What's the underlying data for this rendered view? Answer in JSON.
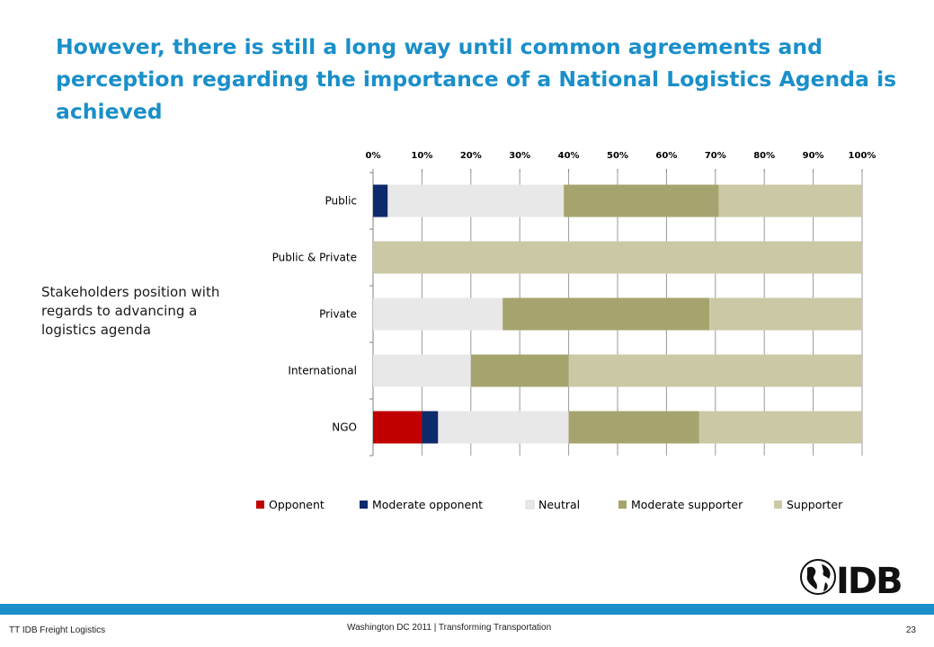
{
  "slide": {
    "title": "However, there is still a long way until common agreements and perception regarding the importance of a National Logistics Agenda is achieved",
    "side_note": "Stakeholders  position with regards to advancing a logistics agenda"
  },
  "footer": {
    "left": "TT IDB Freight Logistics",
    "center": "Washington DC 2011 | Transforming Transportation",
    "page": "23"
  },
  "logo": {
    "text": "IDB",
    "icon": "globe-icon"
  },
  "chart_data": {
    "type": "bar",
    "orientation": "horizontal",
    "stacked": "percent",
    "categories": [
      "Public",
      "Public & Private",
      "Private",
      "International",
      "NGO"
    ],
    "x_ticks": [
      "0%",
      "10%",
      "20%",
      "30%",
      "40%",
      "50%",
      "60%",
      "70%",
      "80%",
      "90%",
      "100%"
    ],
    "xlim": [
      0,
      100
    ],
    "grid": true,
    "legend_position": "bottom",
    "series": [
      {
        "name": "Opponent",
        "color": "#c00000",
        "values": [
          0,
          0,
          0,
          0,
          10
        ]
      },
      {
        "name": "Moderate opponent",
        "color": "#0d2a6b",
        "values": [
          3,
          0,
          0,
          0,
          3.3
        ]
      },
      {
        "name": "Neutral",
        "color": "#e8e8e8",
        "values": [
          36,
          0,
          26.5,
          20,
          26.7
        ]
      },
      {
        "name": "Moderate supporter",
        "color": "#a6a46e",
        "values": [
          31.7,
          0,
          42.3,
          20,
          26.7
        ]
      },
      {
        "name": "Supporter",
        "color": "#cbc8a6",
        "values": [
          29.3,
          100,
          31.2,
          60,
          33.3
        ]
      }
    ]
  }
}
